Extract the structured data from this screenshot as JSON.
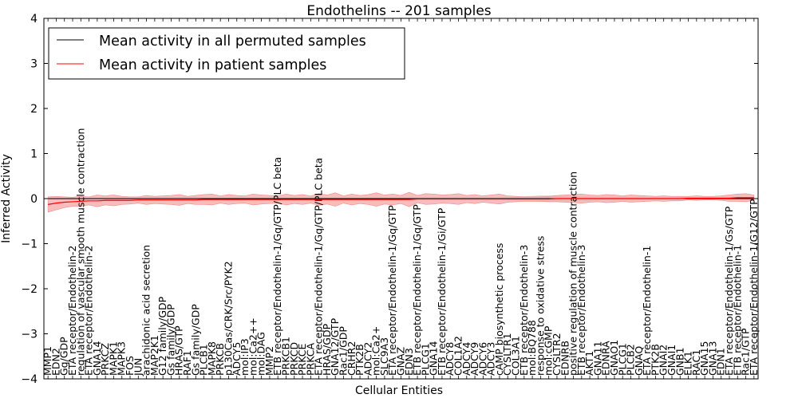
{
  "chart_data": {
    "type": "line",
    "title": "Endothelins -- 201 samples",
    "xlabel": "Cellular Entities",
    "ylabel": "Inferred Activity",
    "ylim": [
      -4,
      4
    ],
    "yticks": [
      -4,
      -3,
      -2,
      -1,
      0,
      1,
      2,
      3,
      4
    ],
    "ytick_labels": [
      "−4",
      "−3",
      "−2",
      "−1",
      "0",
      "1",
      "2",
      "3",
      "4"
    ],
    "grid": false,
    "legend_position": "top-left",
    "categories": [
      "MMP1",
      "EDN2",
      "Gq/GDP",
      "ETA receptor/Endothelin-2",
      "regulation of vascular smooth muscle contraction",
      "ETA receptor/Endothelin-2",
      "GNA14",
      "PRKCZ",
      "MAPK1",
      "MAPK3",
      "FOS",
      "JUN",
      "arachidonic acid secretion",
      "MAP2K1",
      "G12 family/GDP",
      "Gs family/GDP",
      "HRAS/GTP",
      "RAF1",
      "Gs family/GDP",
      "PLCB1",
      "MAPK8",
      "PRKCB",
      "p130Cas/CRK/Src/PYK2",
      "ADCY5",
      "mol:IP3",
      "mol:Ca2++",
      "mol:DAG",
      "MMP2",
      "ETB receptor/Endothelin-1/Gq/GTP/PLC beta",
      "PRKCB1",
      "PRKCD",
      "PRKCE",
      "PRKCA",
      "ETA receptor/Endothelin-1/Gq/GTP/PLC beta",
      "HRAS/GDP",
      "GNA12/GTP",
      "Rac1/GDP",
      "CRHR2",
      "PTK2B",
      "ADCY2",
      "mol:Ca2+",
      "SLC9A3",
      "ETA receptor/Endothelin-1/Gq/GTP",
      "GNAZ",
      "EDN3",
      "ETB receptor/Endothelin-1/Gq/GTP",
      "PLCG1",
      "GNA14",
      "ETB receptor/Endothelin-1/Gi/GTP",
      "ADCY8",
      "COL1A2",
      "ADCY4",
      "ADCY9",
      "ADCY6",
      "ADCY3",
      "cAMP biosynthetic process",
      "CYSLTR1",
      "COL3A1",
      "ETB receptor/Endothelin-3",
      "mol:BQ788",
      "response to oxidative stress",
      "mol:cGMP",
      "CYSLTR2",
      "EDNRB",
      "positive regulation of muscle contraction",
      "ETB receptor/Endothelin-3",
      "AKT1",
      "GNA11",
      "EDNRA",
      "GNAO1",
      "PLCG1",
      "PLCB2",
      "GNAQ",
      "ETA receptor/Endothelin-1",
      "PTK2B",
      "GNAI2",
      "GNAI1",
      "GNB1",
      "ELK1",
      "RAC1",
      "GNA15",
      "GNA13",
      "EDN1",
      "ETA receptor/Endothelin-1/Gs/GTP",
      "ETB receptor/Endothelin-1",
      "Rac1/GTP",
      "ETA receptor/Endothelin-1/G12/GTP"
    ],
    "series": [
      {
        "name": "Mean activity in all permuted samples",
        "color": "#000000",
        "band_color": "#bfbfbf",
        "values": [
          0,
          0,
          0,
          0,
          0,
          0,
          0,
          0,
          0,
          0,
          0,
          0,
          0,
          0,
          0,
          0,
          0,
          0,
          0,
          0,
          0,
          0,
          0,
          0,
          0,
          0,
          0,
          0,
          0,
          0,
          0,
          0,
          0,
          0,
          0,
          0,
          0,
          0,
          0,
          0,
          0,
          0,
          0,
          0,
          0,
          0,
          0,
          0,
          0,
          0,
          0,
          0,
          0,
          0,
          0,
          0,
          0,
          0,
          0,
          0,
          0,
          0,
          0,
          0,
          0,
          0,
          0,
          0,
          0,
          0,
          0,
          0,
          0,
          0,
          0,
          0,
          0,
          0,
          0,
          0,
          0,
          0,
          0,
          0,
          0,
          0,
          0
        ],
        "band": [
          0.02,
          0.02,
          0.02,
          0.02,
          0.02,
          0.02,
          0.02,
          0.02,
          0.02,
          0.02,
          0.02,
          0.02,
          0.02,
          0.02,
          0.02,
          0.02,
          0.02,
          0.02,
          0.02,
          0.02,
          0.02,
          0.02,
          0.02,
          0.02,
          0.02,
          0.02,
          0.02,
          0.02,
          0.02,
          0.02,
          0.02,
          0.02,
          0.02,
          0.02,
          0.02,
          0.02,
          0.02,
          0.02,
          0.02,
          0.02,
          0.02,
          0.02,
          0.02,
          0.02,
          0.02,
          0.02,
          0.02,
          0.02,
          0.02,
          0.02,
          0.02,
          0.02,
          0.02,
          0.02,
          0.02,
          0.02,
          0.03,
          0.04,
          0.05,
          0.06,
          0.07,
          0.07,
          0.06,
          0.06,
          0.05,
          0.05,
          0.05,
          0.04,
          0.04,
          0.04,
          0.04,
          0.04,
          0.04,
          0.03,
          0.03,
          0.03,
          0.03,
          0.03,
          0.03,
          0.03,
          0.03,
          0.03,
          0.03,
          0.03,
          0.03,
          0.03,
          0.03
        ]
      },
      {
        "name": "Mean activity in patient samples",
        "color": "#ff0000",
        "band_color": "#f4a6a6",
        "values": [
          -0.13,
          -0.1,
          -0.08,
          -0.07,
          -0.06,
          -0.05,
          -0.05,
          -0.04,
          -0.04,
          -0.04,
          -0.04,
          -0.03,
          -0.03,
          -0.03,
          -0.03,
          -0.03,
          -0.03,
          -0.03,
          -0.03,
          -0.02,
          -0.02,
          -0.02,
          -0.02,
          -0.02,
          -0.02,
          -0.02,
          -0.02,
          -0.02,
          -0.02,
          -0.02,
          -0.02,
          -0.02,
          -0.02,
          -0.02,
          -0.02,
          -0.02,
          -0.02,
          -0.02,
          -0.02,
          -0.02,
          -0.02,
          -0.02,
          -0.02,
          -0.02,
          -0.02,
          -0.01,
          -0.01,
          -0.01,
          -0.01,
          -0.01,
          -0.01,
          -0.01,
          -0.01,
          -0.01,
          -0.01,
          -0.01,
          -0.01,
          -0.01,
          -0.01,
          -0.01,
          -0.01,
          -0.01,
          0,
          0,
          0,
          0,
          0,
          0,
          0,
          0,
          0,
          0,
          0,
          0,
          0,
          0,
          0,
          0,
          0.01,
          0.01,
          0.01,
          0.01,
          0.01,
          0.01,
          0.02,
          0.02,
          0.02
        ],
        "band": [
          0.17,
          0.15,
          0.12,
          0.1,
          0.11,
          0.09,
          0.13,
          0.1,
          0.12,
          0.09,
          0.08,
          0.07,
          0.1,
          0.08,
          0.09,
          0.1,
          0.12,
          0.08,
          0.1,
          0.11,
          0.12,
          0.08,
          0.11,
          0.09,
          0.08,
          0.12,
          0.1,
          0.09,
          0.08,
          0.12,
          0.09,
          0.11,
          0.08,
          0.13,
          0.1,
          0.15,
          0.08,
          0.12,
          0.09,
          0.11,
          0.15,
          0.1,
          0.12,
          0.09,
          0.16,
          0.08,
          0.12,
          0.11,
          0.09,
          0.1,
          0.12,
          0.08,
          0.1,
          0.07,
          0.09,
          0.11,
          0.07,
          0.06,
          0.05,
          0.05,
          0.05,
          0.06,
          0.07,
          0.08,
          0.09,
          0.1,
          0.08,
          0.07,
          0.09,
          0.08,
          0.06,
          0.08,
          0.07,
          0.06,
          0.05,
          0.06,
          0.05,
          0.05,
          0.04,
          0.05,
          0.04,
          0.04,
          0.05,
          0.07,
          0.08,
          0.09,
          0.06
        ]
      }
    ]
  }
}
